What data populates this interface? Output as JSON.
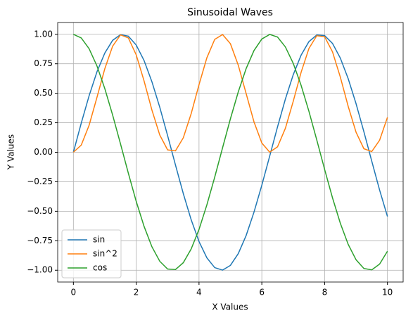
{
  "chart_data": {
    "type": "line",
    "title": "Sinusoidal Waves",
    "xlabel": "X Values",
    "ylabel": "Y Values",
    "x": [
      0,
      0.25,
      0.5,
      0.75,
      1,
      1.25,
      1.5,
      1.75,
      2,
      2.25,
      2.5,
      2.75,
      3,
      3.25,
      3.5,
      3.75,
      4,
      4.25,
      4.5,
      4.75,
      5,
      5.25,
      5.5,
      5.75,
      6,
      6.25,
      6.5,
      6.75,
      7,
      7.25,
      7.5,
      7.75,
      8,
      8.25,
      8.5,
      8.75,
      9,
      9.25,
      9.5,
      9.75,
      10
    ],
    "series": [
      {
        "name": "sin",
        "color": "#1f77b4",
        "values": [
          0,
          0.247,
          0.479,
          0.682,
          0.841,
          0.949,
          0.997,
          0.984,
          0.909,
          0.778,
          0.598,
          0.382,
          0.141,
          -0.108,
          -0.351,
          -0.572,
          -0.757,
          -0.895,
          -0.978,
          -0.999,
          -0.959,
          -0.859,
          -0.706,
          -0.508,
          -0.279,
          -0.033,
          0.215,
          0.451,
          0.657,
          0.823,
          0.938,
          0.994,
          0.989,
          0.923,
          0.798,
          0.624,
          0.412,
          0.174,
          -0.075,
          -0.32,
          -0.544
        ]
      },
      {
        "name": "sin^2",
        "color": "#ff7f0e",
        "values": [
          0,
          0.061,
          0.229,
          0.465,
          0.708,
          0.9,
          0.995,
          0.969,
          0.826,
          0.605,
          0.358,
          0.146,
          0.02,
          0.012,
          0.123,
          0.327,
          0.573,
          0.801,
          0.957,
          0.998,
          0.92,
          0.738,
          0.498,
          0.258,
          0.078,
          0.001,
          0.046,
          0.203,
          0.432,
          0.677,
          0.88,
          0.988,
          0.979,
          0.852,
          0.637,
          0.389,
          0.17,
          0.03,
          0.006,
          0.102,
          0.296
        ]
      },
      {
        "name": "cos",
        "color": "#2ca02c",
        "values": [
          1,
          0.969,
          0.878,
          0.732,
          0.54,
          0.315,
          0.071,
          -0.178,
          -0.416,
          -0.628,
          -0.801,
          -0.924,
          -0.99,
          -0.994,
          -0.936,
          -0.82,
          -0.654,
          -0.446,
          -0.211,
          0.038,
          0.284,
          0.512,
          0.709,
          0.862,
          0.96,
          0.999,
          0.977,
          0.893,
          0.754,
          0.568,
          0.347,
          0.104,
          -0.146,
          -0.386,
          -0.602,
          -0.781,
          -0.911,
          -0.985,
          -0.997,
          -0.948,
          -0.839
        ]
      }
    ],
    "xlim": [
      -0.5,
      10.5
    ],
    "ylim": [
      -1.1,
      1.1
    ],
    "xticks": [
      0,
      2,
      4,
      6,
      8,
      10
    ],
    "yticks": [
      {
        "value": -1,
        "label": "−1.00"
      },
      {
        "value": -0.75,
        "label": "−0.75"
      },
      {
        "value": -0.5,
        "label": "−0.50"
      },
      {
        "value": -0.25,
        "label": "−0.25"
      },
      {
        "value": 0,
        "label": "0.00"
      },
      {
        "value": 0.25,
        "label": "0.25"
      },
      {
        "value": 0.5,
        "label": "0.50"
      },
      {
        "value": 0.75,
        "label": "0.75"
      },
      {
        "value": 1,
        "label": "1.00"
      }
    ],
    "grid": true,
    "legend": "lower left"
  }
}
